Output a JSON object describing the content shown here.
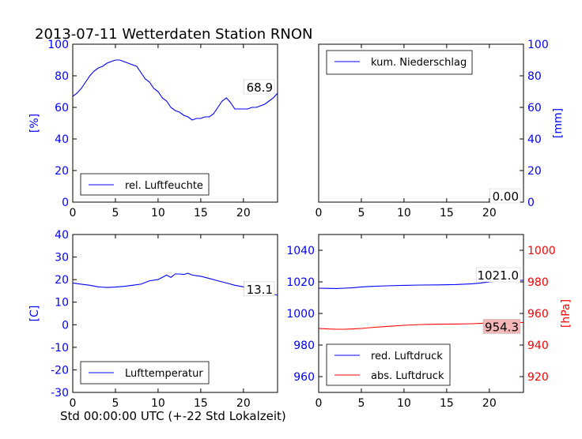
{
  "figure": {
    "title": "2013-07-11 Wetterdaten Station RNON",
    "xlabel": "Std 00:00:00 UTC (+-22 Std Lokalzeit)"
  },
  "colors": {
    "blue": "#0000ff",
    "red": "#ff0000",
    "axis": "#000000",
    "pressure_badge": "#f4b6b6"
  },
  "chart_data": [
    {
      "type": "line",
      "xlim": [
        0,
        24
      ],
      "ylim": [
        0,
        100
      ],
      "xticks": [
        0,
        5,
        10,
        15,
        20
      ],
      "yticks": [
        0,
        20,
        40,
        60,
        80,
        100
      ],
      "ylabel": "[%]",
      "legend": "bottom-left",
      "series": [
        {
          "name": "rel. Luftfeuchte",
          "color": "#0000ff",
          "x": [
            0,
            0.5,
            1,
            1.5,
            2,
            2.5,
            3,
            3.5,
            4,
            4.5,
            5,
            5.5,
            6,
            6.5,
            7,
            7.5,
            8,
            8.5,
            9,
            9.5,
            10,
            10.5,
            11,
            11.5,
            12,
            12.5,
            13,
            13.5,
            14,
            14.5,
            15,
            15.5,
            16,
            16.5,
            17,
            17.5,
            18,
            18.5,
            19,
            19.5,
            20,
            20.5,
            21,
            21.5,
            22,
            22.5,
            23,
            23.5,
            24
          ],
          "values": [
            67,
            69,
            72,
            76,
            80,
            83,
            85,
            86,
            88,
            89,
            90,
            90,
            89,
            88,
            87,
            86,
            82,
            78,
            76,
            72,
            70,
            66,
            64,
            60,
            58,
            57,
            55,
            54,
            52,
            53,
            53,
            54,
            54,
            56,
            60,
            64,
            66,
            63,
            59,
            59,
            59,
            59,
            60,
            60,
            61,
            62,
            64,
            66,
            69
          ]
        }
      ],
      "last_value_label": "68.9"
    },
    {
      "type": "line",
      "xlim": [
        0,
        24
      ],
      "ylim": [
        0,
        100
      ],
      "xticks": [
        0,
        5,
        10,
        15,
        20
      ],
      "yticks": [
        0,
        20,
        40,
        60,
        80,
        100
      ],
      "ylabel": "[mm]",
      "yaxis_side": "right",
      "legend": "top-left",
      "series": [
        {
          "name": "kum. Niederschlag",
          "color": "#0000ff",
          "x": [
            0,
            24
          ],
          "values": [
            0,
            0
          ]
        }
      ],
      "last_value_label": "0.00"
    },
    {
      "type": "line",
      "xlim": [
        0,
        24
      ],
      "ylim": [
        -30,
        40
      ],
      "xticks": [
        0,
        5,
        10,
        15,
        20
      ],
      "yticks": [
        -30,
        -20,
        -10,
        0,
        10,
        20,
        30,
        40
      ],
      "ylabel": "[C]",
      "legend": "bottom-left",
      "series": [
        {
          "name": "Lufttemperatur",
          "color": "#0000ff",
          "x": [
            0,
            1,
            2,
            3,
            4,
            5,
            6,
            7,
            8,
            9,
            10,
            10.5,
            11,
            11.5,
            12,
            12.5,
            13,
            13.5,
            14,
            15,
            16,
            17,
            18,
            19,
            20,
            21,
            22,
            23,
            24
          ],
          "values": [
            18.5,
            18,
            17.5,
            16.8,
            16.5,
            16.7,
            17,
            17.5,
            18,
            19.5,
            20,
            21,
            22,
            21,
            22.5,
            22.5,
            22.3,
            22.8,
            22,
            21.5,
            20.5,
            19.5,
            18.5,
            17.5,
            16.8,
            16,
            15,
            14,
            13.1
          ]
        }
      ],
      "last_value_label": "13.1"
    },
    {
      "type": "line",
      "xlim": [
        0,
        24
      ],
      "ylim": [
        950,
        1050
      ],
      "y2lim": [
        910,
        1010
      ],
      "xticks": [
        0,
        5,
        10,
        15,
        20
      ],
      "yticks": [
        960,
        980,
        1000,
        1020,
        1040
      ],
      "y2ticks": [
        920,
        940,
        960,
        980,
        1000
      ],
      "y2label": "[hPa]",
      "legend": "bottom-left",
      "series": [
        {
          "name": "red. Luftdruck",
          "color": "#0000ff",
          "axis": "left",
          "x": [
            0,
            1,
            2,
            3,
            4,
            5,
            6,
            8,
            10,
            12,
            14,
            16,
            18,
            19,
            20,
            21,
            22,
            23,
            24
          ],
          "values": [
            1016,
            1015.9,
            1015.8,
            1016,
            1016.3,
            1016.8,
            1017.1,
            1017.5,
            1017.8,
            1018,
            1018.1,
            1018.3,
            1018.8,
            1019.3,
            1020,
            1020.5,
            1020.8,
            1021,
            1021
          ]
        },
        {
          "name": "abs. Luftdruck",
          "color": "#ff0000",
          "axis": "right",
          "x": [
            0,
            1,
            2,
            3,
            4,
            5,
            6,
            8,
            10,
            12,
            14,
            16,
            18,
            19,
            20,
            21,
            22,
            23,
            24
          ],
          "values": [
            950.5,
            950.2,
            950,
            950,
            950.2,
            950.5,
            951,
            951.8,
            952.5,
            953,
            953.2,
            953.3,
            953.5,
            953.7,
            954,
            954.1,
            954.2,
            954.3,
            954.3
          ]
        }
      ],
      "last_value_labels": [
        "1021.0",
        "954.3"
      ]
    }
  ]
}
